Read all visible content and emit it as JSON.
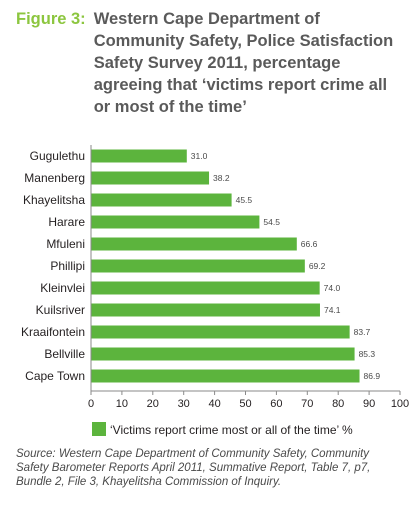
{
  "figure": {
    "label": "Figure 3:",
    "title": "Western Cape Department of Community Safety, Police Satisfaction Safety Survey 2011, percentage agreeing that ‘victims report crime all or most of the time’"
  },
  "colors": {
    "bar": "#5cb43d",
    "title_label": "#8cc63f",
    "axis": "#8a8a8a"
  },
  "chart_data": {
    "type": "bar",
    "orientation": "horizontal",
    "categories": [
      "Gugulethu",
      "Manenberg",
      "Khayelitsha",
      "Harare",
      "Mfuleni",
      "Phillipi",
      "Kleinvlei",
      "Kuilsriver",
      "Kraaifontein",
      "Bellville",
      "Cape Town"
    ],
    "series": [
      {
        "name": "‘Victims report crime most or all of the time’ %",
        "values": [
          31.0,
          38.2,
          45.5,
          54.5,
          66.6,
          69.2,
          74.0,
          74.1,
          83.7,
          85.3,
          86.9
        ]
      }
    ],
    "value_labels": [
      "31.0",
      "38.2",
      "45.5",
      "54.5",
      "66.6",
      "69.2",
      "74.0",
      "74.1",
      "83.7",
      "85.3",
      "86.9"
    ],
    "xlim": [
      0,
      100
    ],
    "xticks": [
      "0",
      "10",
      "20",
      "30",
      "40",
      "50",
      "60",
      "70",
      "80",
      "90",
      "100"
    ],
    "grid": false,
    "legend_position": "bottom"
  },
  "source": "Source: Western Cape Department of Community Safety, Community Safety Barometer Reports April 2011, Summative Report, Table 7, p7, Bundle 2, File 3, Khayelitsha Commission of Inquiry."
}
